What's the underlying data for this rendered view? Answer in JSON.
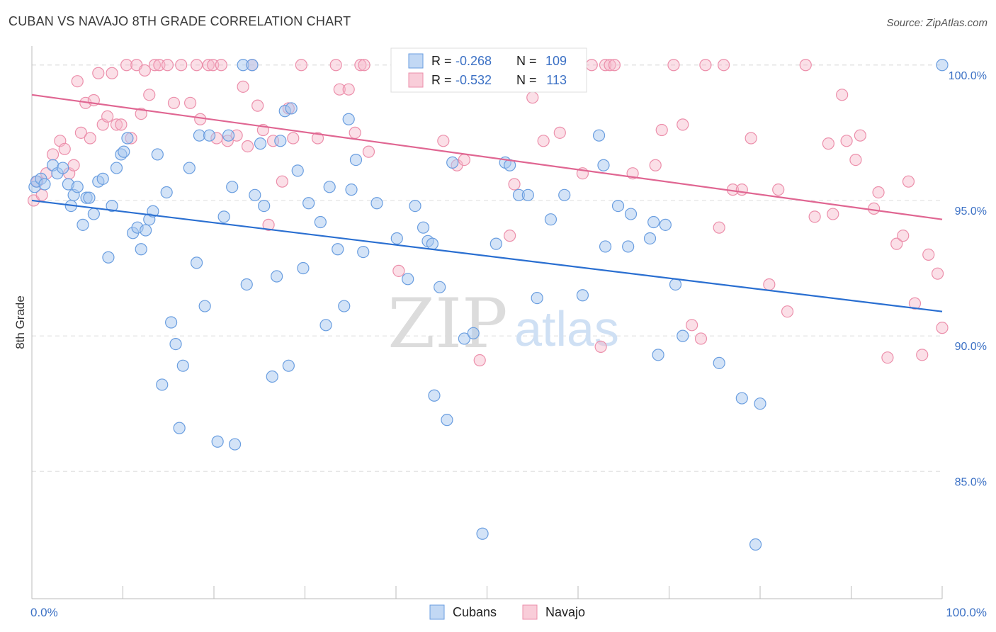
{
  "header": {
    "title": "CUBAN VS NAVAJO 8TH GRADE CORRELATION CHART",
    "source": "Source: ZipAtlas.com"
  },
  "colors": {
    "cubans_fill": "#a8c8f0",
    "cubans_stroke": "#6a9ee0",
    "cubans_line": "#2a6fd1",
    "navajo_fill": "#f7b8c9",
    "navajo_stroke": "#ec8fab",
    "navajo_line": "#e06692",
    "axis_label": "#3c71c5",
    "grid": "#dddddd"
  },
  "watermark": {
    "zip": "ZIP",
    "atlas": "atlas"
  },
  "chart_data": {
    "type": "scatter",
    "title": "CUBAN VS NAVAJO 8TH GRADE CORRELATION CHART",
    "xlabel": "",
    "ylabel": "8th Grade",
    "xlim": [
      0,
      100
    ],
    "ylim": [
      80.3,
      100.7
    ],
    "x_tick_labels": [
      "0.0%",
      "100.0%"
    ],
    "y_ticks": [
      85,
      90,
      95,
      100
    ],
    "y_tick_labels": [
      "85.0%",
      "90.0%",
      "95.0%",
      "100.0%"
    ],
    "grid": true,
    "legend": {
      "position": "top-center",
      "entries": [
        {
          "series": "Cubans",
          "r_label": "R = ",
          "r_value": "-0.268",
          "n_label": "N = ",
          "n_value": "109"
        },
        {
          "series": "Navajo",
          "r_label": "R = ",
          "r_value": "-0.532",
          "n_label": "N = ",
          "n_value": "113"
        }
      ]
    },
    "series": [
      {
        "name": "Cubans",
        "trend": {
          "x": [
            0,
            100
          ],
          "y": [
            95.0,
            90.9
          ]
        },
        "points": [
          [
            0.3,
            95.5
          ],
          [
            0.5,
            95.7
          ],
          [
            1.0,
            95.8
          ],
          [
            1.4,
            95.6
          ],
          [
            2.3,
            96.3
          ],
          [
            2.8,
            96.0
          ],
          [
            3.4,
            96.2
          ],
          [
            4.0,
            95.6
          ],
          [
            4.3,
            94.8
          ],
          [
            4.6,
            95.2
          ],
          [
            5.0,
            95.5
          ],
          [
            5.6,
            94.1
          ],
          [
            6.0,
            95.1
          ],
          [
            6.3,
            95.1
          ],
          [
            6.8,
            94.5
          ],
          [
            7.3,
            95.7
          ],
          [
            7.8,
            95.8
          ],
          [
            8.4,
            92.9
          ],
          [
            8.8,
            94.8
          ],
          [
            9.3,
            96.2
          ],
          [
            9.8,
            96.7
          ],
          [
            10.1,
            96.8
          ],
          [
            10.5,
            97.3
          ],
          [
            11.1,
            93.8
          ],
          [
            11.6,
            94.0
          ],
          [
            12.0,
            93.2
          ],
          [
            12.5,
            93.9
          ],
          [
            12.9,
            94.3
          ],
          [
            13.3,
            94.6
          ],
          [
            13.8,
            96.7
          ],
          [
            14.3,
            88.2
          ],
          [
            14.8,
            95.3
          ],
          [
            15.8,
            89.7
          ],
          [
            15.3,
            90.5
          ],
          [
            16.2,
            86.6
          ],
          [
            16.6,
            88.9
          ],
          [
            17.3,
            96.2
          ],
          [
            18.1,
            92.7
          ],
          [
            18.4,
            97.4
          ],
          [
            19.0,
            91.1
          ],
          [
            19.5,
            97.4
          ],
          [
            20.4,
            86.1
          ],
          [
            21.1,
            94.4
          ],
          [
            21.6,
            97.4
          ],
          [
            22.0,
            95.5
          ],
          [
            22.3,
            86.0
          ],
          [
            23.2,
            100.0
          ],
          [
            23.6,
            91.9
          ],
          [
            24.2,
            100.0
          ],
          [
            24.5,
            95.2
          ],
          [
            25.1,
            97.1
          ],
          [
            25.5,
            94.8
          ],
          [
            26.4,
            88.5
          ],
          [
            26.9,
            92.2
          ],
          [
            27.3,
            97.2
          ],
          [
            27.8,
            98.3
          ],
          [
            28.2,
            88.9
          ],
          [
            28.5,
            98.4
          ],
          [
            29.2,
            96.1
          ],
          [
            29.8,
            92.5
          ],
          [
            30.4,
            94.9
          ],
          [
            31.7,
            94.2
          ],
          [
            32.3,
            90.4
          ],
          [
            32.7,
            95.5
          ],
          [
            33.6,
            93.2
          ],
          [
            34.3,
            91.1
          ],
          [
            34.8,
            98.0
          ],
          [
            35.1,
            95.4
          ],
          [
            35.6,
            96.5
          ],
          [
            36.4,
            93.1
          ],
          [
            37.9,
            94.9
          ],
          [
            40.1,
            93.6
          ],
          [
            41.3,
            92.1
          ],
          [
            42.1,
            94.8
          ],
          [
            43.0,
            94.0
          ],
          [
            43.5,
            93.5
          ],
          [
            44.0,
            93.4
          ],
          [
            44.2,
            87.8
          ],
          [
            44.8,
            91.8
          ],
          [
            45.6,
            86.9
          ],
          [
            46.2,
            96.4
          ],
          [
            47.5,
            89.9
          ],
          [
            48.5,
            90.1
          ],
          [
            49.5,
            82.7
          ],
          [
            51.0,
            93.4
          ],
          [
            52.0,
            96.4
          ],
          [
            52.5,
            96.3
          ],
          [
            53.5,
            95.2
          ],
          [
            54.5,
            95.2
          ],
          [
            55.5,
            91.4
          ],
          [
            57.0,
            94.3
          ],
          [
            58.5,
            95.2
          ],
          [
            60.5,
            91.5
          ],
          [
            62.3,
            97.4
          ],
          [
            62.8,
            96.3
          ],
          [
            63.0,
            93.3
          ],
          [
            64.4,
            94.8
          ],
          [
            65.5,
            93.3
          ],
          [
            65.8,
            94.5
          ],
          [
            67.9,
            93.6
          ],
          [
            68.3,
            94.2
          ],
          [
            68.8,
            89.3
          ],
          [
            69.6,
            94.1
          ],
          [
            70.7,
            91.9
          ],
          [
            71.5,
            90.0
          ],
          [
            75.5,
            89.0
          ],
          [
            78.0,
            87.7
          ],
          [
            80.0,
            87.5
          ],
          [
            79.5,
            82.3
          ],
          [
            100.0,
            100.0
          ]
        ]
      },
      {
        "name": "Navajo",
        "trend": {
          "x": [
            0,
            100
          ],
          "y": [
            98.9,
            94.3
          ]
        },
        "points": [
          [
            0.2,
            95.0
          ],
          [
            0.6,
            95.7
          ],
          [
            1.1,
            95.2
          ],
          [
            1.6,
            96.0
          ],
          [
            2.3,
            96.7
          ],
          [
            3.1,
            97.2
          ],
          [
            3.6,
            96.9
          ],
          [
            4.1,
            96.0
          ],
          [
            4.6,
            96.3
          ],
          [
            5.0,
            99.4
          ],
          [
            5.4,
            97.5
          ],
          [
            5.9,
            98.6
          ],
          [
            6.4,
            97.3
          ],
          [
            6.8,
            98.7
          ],
          [
            7.3,
            99.7
          ],
          [
            7.8,
            97.8
          ],
          [
            8.3,
            98.1
          ],
          [
            8.8,
            99.7
          ],
          [
            9.3,
            97.8
          ],
          [
            9.8,
            97.8
          ],
          [
            10.4,
            100.0
          ],
          [
            10.9,
            97.3
          ],
          [
            11.5,
            100.0
          ],
          [
            12.0,
            98.2
          ],
          [
            12.4,
            99.8
          ],
          [
            12.9,
            98.9
          ],
          [
            13.5,
            100.0
          ],
          [
            14.0,
            100.0
          ],
          [
            14.9,
            100.0
          ],
          [
            15.6,
            98.6
          ],
          [
            16.4,
            100.0
          ],
          [
            17.4,
            98.6
          ],
          [
            18.1,
            100.0
          ],
          [
            18.5,
            98.0
          ],
          [
            19.4,
            100.0
          ],
          [
            19.9,
            100.0
          ],
          [
            20.3,
            97.3
          ],
          [
            20.8,
            100.0
          ],
          [
            21.5,
            97.2
          ],
          [
            22.5,
            97.4
          ],
          [
            23.2,
            99.2
          ],
          [
            23.7,
            97.0
          ],
          [
            24.2,
            100.0
          ],
          [
            24.8,
            98.5
          ],
          [
            25.4,
            97.6
          ],
          [
            26.0,
            94.1
          ],
          [
            26.5,
            97.2
          ],
          [
            27.5,
            95.7
          ],
          [
            28.2,
            98.4
          ],
          [
            28.7,
            97.3
          ],
          [
            29.6,
            100.0
          ],
          [
            31.4,
            97.3
          ],
          [
            33.4,
            100.0
          ],
          [
            33.8,
            99.1
          ],
          [
            34.8,
            99.1
          ],
          [
            35.5,
            97.5
          ],
          [
            36.1,
            100.0
          ],
          [
            36.5,
            100.0
          ],
          [
            37.0,
            96.8
          ],
          [
            40.3,
            92.4
          ],
          [
            41.2,
            100.0
          ],
          [
            45.2,
            97.2
          ],
          [
            45.8,
            100.0
          ],
          [
            46.7,
            96.3
          ],
          [
            47.5,
            96.5
          ],
          [
            49.2,
            89.1
          ],
          [
            51.0,
            100.0
          ],
          [
            52.5,
            93.7
          ],
          [
            53.0,
            95.6
          ],
          [
            55.0,
            98.8
          ],
          [
            56.2,
            97.2
          ],
          [
            58.0,
            97.5
          ],
          [
            60.5,
            96.0
          ],
          [
            61.5,
            100.0
          ],
          [
            62.5,
            89.6
          ],
          [
            63.0,
            100.0
          ],
          [
            63.5,
            100.0
          ],
          [
            64.0,
            100.0
          ],
          [
            66.0,
            96.0
          ],
          [
            68.5,
            96.3
          ],
          [
            69.2,
            97.6
          ],
          [
            70.5,
            100.0
          ],
          [
            71.5,
            97.8
          ],
          [
            72.5,
            90.4
          ],
          [
            73.5,
            89.9
          ],
          [
            74.0,
            100.0
          ],
          [
            75.5,
            94.0
          ],
          [
            76.0,
            100.0
          ],
          [
            77.0,
            95.4
          ],
          [
            78.0,
            95.4
          ],
          [
            79.0,
            97.3
          ],
          [
            81.0,
            91.9
          ],
          [
            82.0,
            95.4
          ],
          [
            83.0,
            90.9
          ],
          [
            85.0,
            100.0
          ],
          [
            86.0,
            94.4
          ],
          [
            87.5,
            97.1
          ],
          [
            88.0,
            94.5
          ],
          [
            89.0,
            98.9
          ],
          [
            89.5,
            97.2
          ],
          [
            90.5,
            96.5
          ],
          [
            91.0,
            97.4
          ],
          [
            92.5,
            94.7
          ],
          [
            93.0,
            95.3
          ],
          [
            94.0,
            89.2
          ],
          [
            95.0,
            93.4
          ],
          [
            95.7,
            93.7
          ],
          [
            96.3,
            95.7
          ],
          [
            97.0,
            91.2
          ],
          [
            97.8,
            89.3
          ],
          [
            98.5,
            93.0
          ],
          [
            99.5,
            92.3
          ],
          [
            100.0,
            90.3
          ]
        ]
      }
    ]
  },
  "bottom_legend": [
    {
      "label": "Cubans"
    },
    {
      "label": "Navajo"
    }
  ]
}
